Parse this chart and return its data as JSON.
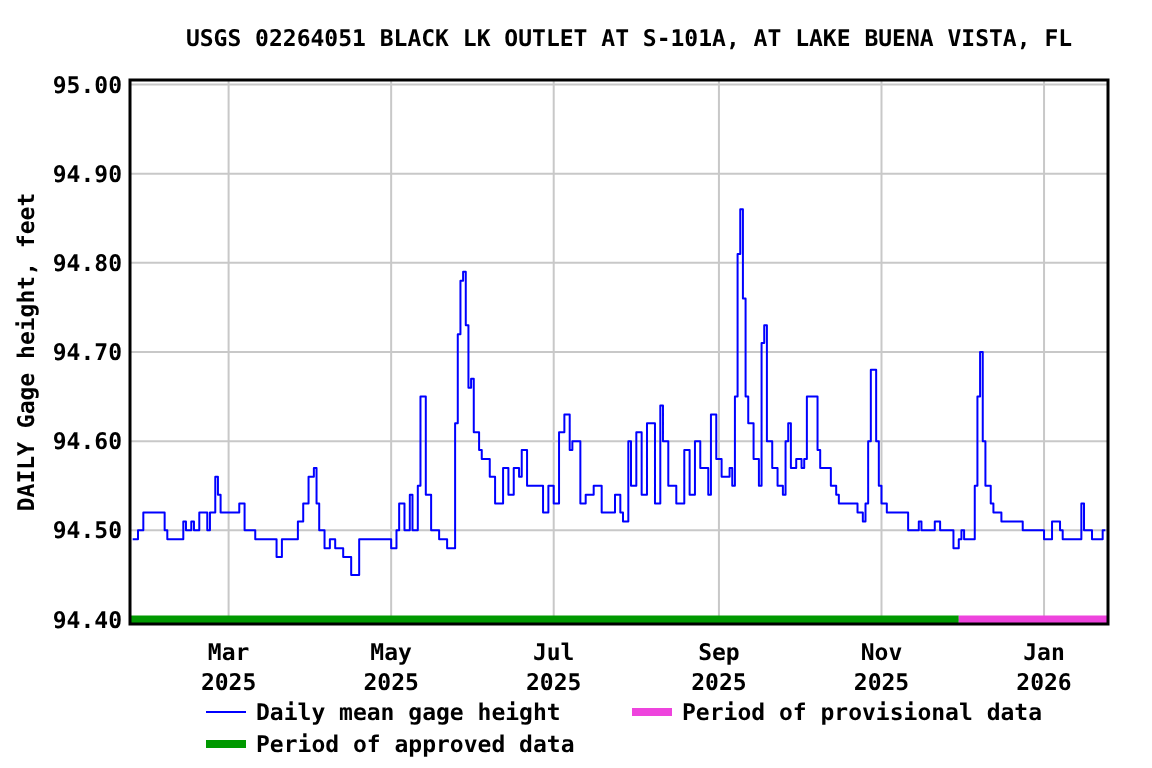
{
  "chart_data": {
    "type": "step",
    "title": "USGS 02264051 BLACK LK OUTLET AT S-101A, AT LAKE BUENA VISTA, FL",
    "ylabel": "DAILY Gage height, feet",
    "xlim": [
      "2025-01-23",
      "2026-01-25"
    ],
    "xticks": [
      {
        "value": "2025-03-01",
        "label": "Mar 2025"
      },
      {
        "value": "2025-05-01",
        "label": "May 2025"
      },
      {
        "value": "2025-07-01",
        "label": "Jul 2025"
      },
      {
        "value": "2025-09-01",
        "label": "Sep 2025"
      },
      {
        "value": "2025-11-01",
        "label": "Nov 2025"
      },
      {
        "value": "2026-01-01",
        "label": "Jan 2026"
      }
    ],
    "ylim": [
      94.395,
      95.005
    ],
    "yticks": [
      {
        "value": 94.4,
        "label": "94.40"
      },
      {
        "value": 94.5,
        "label": "94.50"
      },
      {
        "value": 94.6,
        "label": "94.60"
      },
      {
        "value": 94.7,
        "label": "94.70"
      },
      {
        "value": 94.8,
        "label": "94.80"
      },
      {
        "value": 94.9,
        "label": "94.90"
      },
      {
        "value": 95.0,
        "label": "95.00"
      }
    ],
    "grid": true,
    "legend": "bottom",
    "series": [
      {
        "type": "line",
        "name": "Period of approved data",
        "color": "#009900",
        "x": [
          "2025-01-23",
          "2025-11-30"
        ],
        "values": [
          94.4,
          94.4
        ]
      },
      {
        "type": "line",
        "name": "Period of provisional data",
        "color": "#ee44dd",
        "x": [
          "2025-11-30",
          "2026-01-25"
        ],
        "values": [
          94.4,
          94.4
        ]
      },
      {
        "name": "Daily mean gage height",
        "color": "#0000ff",
        "x": [
          "2025-01-24",
          "2025-01-26",
          "2025-01-28",
          "2025-02-03",
          "2025-02-05",
          "2025-02-06",
          "2025-02-09",
          "2025-02-12",
          "2025-02-13",
          "2025-02-15",
          "2025-02-16",
          "2025-02-18",
          "2025-02-21",
          "2025-02-22",
          "2025-02-24",
          "2025-02-25",
          "2025-02-26",
          "2025-03-03",
          "2025-03-05",
          "2025-03-07",
          "2025-03-11",
          "2025-03-15",
          "2025-03-19",
          "2025-03-21",
          "2025-03-22",
          "2025-03-27",
          "2025-03-29",
          "2025-03-31",
          "2025-04-01",
          "2025-04-02",
          "2025-04-03",
          "2025-04-04",
          "2025-04-06",
          "2025-04-08",
          "2025-04-10",
          "2025-04-13",
          "2025-04-16",
          "2025-04-19",
          "2025-04-29",
          "2025-05-01",
          "2025-05-03",
          "2025-05-04",
          "2025-05-06",
          "2025-05-08",
          "2025-05-09",
          "2025-05-11",
          "2025-05-12",
          "2025-05-14",
          "2025-05-16",
          "2025-05-19",
          "2025-05-22",
          "2025-05-24",
          "2025-05-25",
          "2025-05-26",
          "2025-05-27",
          "2025-05-28",
          "2025-05-29",
          "2025-05-30",
          "2025-05-31",
          "2025-06-01",
          "2025-06-03",
          "2025-06-04",
          "2025-06-07",
          "2025-06-09",
          "2025-06-12",
          "2025-06-14",
          "2025-06-16",
          "2025-06-18",
          "2025-06-19",
          "2025-06-21",
          "2025-06-23",
          "2025-06-27",
          "2025-06-29",
          "2025-07-01",
          "2025-07-03",
          "2025-07-05",
          "2025-07-07",
          "2025-07-08",
          "2025-07-11",
          "2025-07-13",
          "2025-07-16",
          "2025-07-19",
          "2025-07-22",
          "2025-07-24",
          "2025-07-26",
          "2025-07-27",
          "2025-07-29",
          "2025-07-30",
          "2025-08-01",
          "2025-08-03",
          "2025-08-04",
          "2025-08-05",
          "2025-08-08",
          "2025-08-10",
          "2025-08-11",
          "2025-08-13",
          "2025-08-16",
          "2025-08-17",
          "2025-08-19",
          "2025-08-21",
          "2025-08-23",
          "2025-08-25",
          "2025-08-28",
          "2025-08-29",
          "2025-08-31",
          "2025-09-02",
          "2025-09-05",
          "2025-09-06",
          "2025-09-07",
          "2025-09-08",
          "2025-09-09",
          "2025-09-10",
          "2025-09-11",
          "2025-09-12",
          "2025-09-14",
          "2025-09-16",
          "2025-09-17",
          "2025-09-18",
          "2025-09-19",
          "2025-09-21",
          "2025-09-23",
          "2025-09-25",
          "2025-09-26",
          "2025-09-27",
          "2025-09-28",
          "2025-09-30",
          "2025-10-02",
          "2025-10-03",
          "2025-10-04",
          "2025-10-06",
          "2025-10-08",
          "2025-10-09",
          "2025-10-11",
          "2025-10-13",
          "2025-10-15",
          "2025-10-16",
          "2025-10-21",
          "2025-10-23",
          "2025-10-25",
          "2025-10-26",
          "2025-10-27",
          "2025-10-28",
          "2025-10-29",
          "2025-10-30",
          "2025-10-31",
          "2025-11-01",
          "2025-11-03",
          "2025-11-09",
          "2025-11-11",
          "2025-11-14",
          "2025-11-15",
          "2025-11-16",
          "2025-11-20",
          "2025-11-21",
          "2025-11-23",
          "2025-11-27",
          "2025-11-28",
          "2025-11-30",
          "2025-12-01",
          "2025-12-02",
          "2025-12-05",
          "2025-12-06",
          "2025-12-07",
          "2025-12-08",
          "2025-12-09",
          "2025-12-10",
          "2025-12-12",
          "2025-12-13",
          "2025-12-16",
          "2025-12-23",
          "2025-12-24",
          "2025-12-30",
          "2026-01-01",
          "2026-01-03",
          "2026-01-04",
          "2026-01-07",
          "2026-01-08",
          "2026-01-14",
          "2026-01-15",
          "2026-01-16",
          "2026-01-18",
          "2026-01-19",
          "2026-01-22",
          "2026-01-23",
          "2026-01-24"
        ],
        "values": [
          94.49,
          94.5,
          94.52,
          94.52,
          94.5,
          94.49,
          94.49,
          94.51,
          94.5,
          94.51,
          94.5,
          94.52,
          94.5,
          94.52,
          94.56,
          94.54,
          94.52,
          94.52,
          94.53,
          94.5,
          94.49,
          94.49,
          94.47,
          94.49,
          94.49,
          94.51,
          94.53,
          94.56,
          94.56,
          94.57,
          94.53,
          94.5,
          94.48,
          94.49,
          94.48,
          94.47,
          94.45,
          94.49,
          94.49,
          94.48,
          94.5,
          94.53,
          94.5,
          94.54,
          94.5,
          94.55,
          94.65,
          94.54,
          94.5,
          94.49,
          94.48,
          94.48,
          94.62,
          94.72,
          94.78,
          94.79,
          94.73,
          94.66,
          94.67,
          94.61,
          94.59,
          94.58,
          94.56,
          94.53,
          94.57,
          94.54,
          94.57,
          94.56,
          94.59,
          94.55,
          94.55,
          94.52,
          94.55,
          94.53,
          94.61,
          94.63,
          94.59,
          94.6,
          94.53,
          94.54,
          94.55,
          94.52,
          94.52,
          94.54,
          94.52,
          94.51,
          94.6,
          94.55,
          94.61,
          94.54,
          94.54,
          94.62,
          94.53,
          94.64,
          94.6,
          94.55,
          94.53,
          94.53,
          94.59,
          94.54,
          94.6,
          94.57,
          94.54,
          94.63,
          94.58,
          94.56,
          94.57,
          94.55,
          94.65,
          94.81,
          94.86,
          94.76,
          94.65,
          94.62,
          94.58,
          94.55,
          94.71,
          94.73,
          94.6,
          94.57,
          94.55,
          94.54,
          94.6,
          94.62,
          94.57,
          94.58,
          94.57,
          94.58,
          94.65,
          94.65,
          94.59,
          94.57,
          94.57,
          94.55,
          94.54,
          94.53,
          94.53,
          94.52,
          94.51,
          94.53,
          94.6,
          94.68,
          94.68,
          94.6,
          94.55,
          94.53,
          94.52,
          94.52,
          94.5,
          94.5,
          94.51,
          94.5,
          94.5,
          94.51,
          94.5,
          94.5,
          94.48,
          94.49,
          94.5,
          94.49,
          94.49,
          94.55,
          94.65,
          94.7,
          94.6,
          94.55,
          94.53,
          94.52,
          94.51,
          94.51,
          94.5,
          94.5,
          94.49,
          94.49,
          94.51,
          94.5,
          94.49,
          94.49,
          94.53,
          94.5,
          94.5,
          94.49,
          94.49,
          94.5,
          94.5
        ]
      }
    ]
  }
}
